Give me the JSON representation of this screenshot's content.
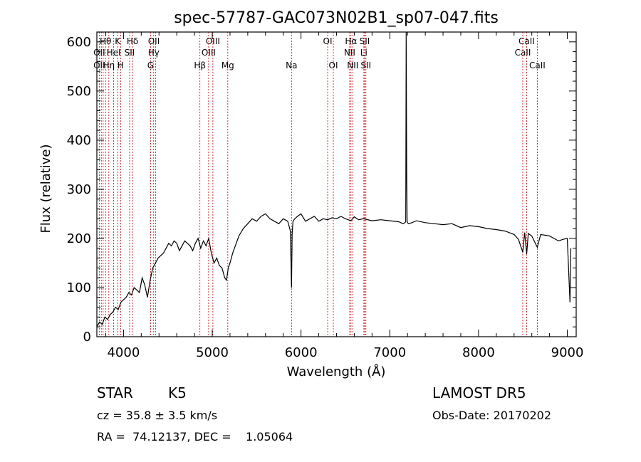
{
  "chart_data": {
    "type": "line",
    "title": "spec-57787-GAC073N02B1_sp07-047.fits",
    "xlabel": "Wavelength (Å)",
    "ylabel": "Flux (relative)",
    "xlim": [
      3700,
      9100
    ],
    "ylim": [
      0,
      620
    ],
    "xticks": [
      4000,
      5000,
      6000,
      7000,
      8000,
      9000
    ],
    "yticks": [
      0,
      100,
      200,
      300,
      400,
      500,
      600
    ],
    "xtick_labels": [
      "4000",
      "5000",
      "6000",
      "7000",
      "8000",
      "9000"
    ],
    "ytick_labels": [
      "0",
      "100",
      "200",
      "300",
      "400",
      "500",
      "600"
    ],
    "grid": false,
    "legend": "none",
    "series": [
      {
        "x": [
          3700,
          3730,
          3760,
          3790,
          3820,
          3850,
          3880,
          3910,
          3940,
          3970,
          4000,
          4030,
          4060,
          4090,
          4120,
          4150,
          4180,
          4210,
          4240,
          4270,
          4300,
          4330,
          4360,
          4390,
          4420,
          4450,
          4480,
          4510,
          4540,
          4570,
          4600,
          4630,
          4660,
          4690,
          4720,
          4750,
          4780,
          4810,
          4840,
          4870,
          4900,
          4930,
          4960,
          4990,
          5020,
          5050,
          5080,
          5110,
          5140,
          5160,
          5180,
          5200,
          5230,
          5260,
          5300,
          5350,
          5400,
          5450,
          5500,
          5550,
          5600,
          5650,
          5700,
          5750,
          5800,
          5850,
          5880,
          5893,
          5900,
          5910,
          5930,
          5960,
          6000,
          6050,
          6100,
          6150,
          6200,
          6250,
          6300,
          6350,
          6400,
          6450,
          6500,
          6563,
          6600,
          6650,
          6700,
          6800,
          6900,
          7000,
          7100,
          7150,
          7170,
          7180,
          7185,
          7190,
          7195,
          7200,
          7210,
          7250,
          7300,
          7400,
          7500,
          7600,
          7700,
          7800,
          7900,
          8000,
          8100,
          8200,
          8300,
          8400,
          8450,
          8498,
          8520,
          8542,
          8560,
          8600,
          8662,
          8700,
          8800,
          8900,
          8950,
          9000,
          9030,
          9040
        ],
        "y": [
          20,
          30,
          25,
          40,
          35,
          45,
          50,
          60,
          55,
          70,
          75,
          80,
          90,
          85,
          100,
          95,
          90,
          120,
          105,
          80,
          115,
          140,
          150,
          160,
          165,
          170,
          180,
          190,
          185,
          195,
          190,
          175,
          185,
          195,
          190,
          185,
          175,
          190,
          200,
          180,
          195,
          185,
          200,
          170,
          150,
          160,
          145,
          140,
          120,
          115,
          140,
          150,
          170,
          185,
          205,
          220,
          230,
          240,
          235,
          245,
          250,
          240,
          235,
          230,
          240,
          235,
          215,
          100,
          210,
          235,
          240,
          245,
          250,
          235,
          240,
          245,
          235,
          240,
          238,
          242,
          240,
          245,
          240,
          236,
          244,
          238,
          240,
          236,
          238,
          236,
          234,
          230,
          232,
          234,
          620,
          330,
          236,
          232,
          230,
          232,
          236,
          232,
          230,
          228,
          230,
          222,
          226,
          224,
          220,
          218,
          215,
          208,
          198,
          172,
          212,
          168,
          210,
          205,
          182,
          208,
          205,
          195,
          198,
          200,
          70,
          180
        ]
      }
    ],
    "line_labels": [
      {
        "text": "Hθ",
        "wave": 3798,
        "row": 1
      },
      {
        "text": "K",
        "wave": 3934,
        "row": 1
      },
      {
        "text": "Hδ",
        "wave": 4102,
        "row": 1
      },
      {
        "text": "OII",
        "wave": 4342,
        "row": 1
      },
      {
        "text": "OIII",
        "wave": 5007,
        "row": 1
      },
      {
        "text": "OI",
        "wave": 6300,
        "row": 1
      },
      {
        "text": "Hα",
        "wave": 6563,
        "row": 1
      },
      {
        "text": "SII",
        "wave": 6717,
        "row": 1
      },
      {
        "text": "CaII",
        "wave": 8542,
        "row": 1
      },
      {
        "text": "OII",
        "wave": 3727,
        "row": 2
      },
      {
        "text": "HeI",
        "wave": 3889,
        "row": 2
      },
      {
        "text": "SII",
        "wave": 4069,
        "row": 2
      },
      {
        "text": "Hγ",
        "wave": 4340,
        "row": 2
      },
      {
        "text": "OIII",
        "wave": 4959,
        "row": 2
      },
      {
        "text": "NII",
        "wave": 6548,
        "row": 2
      },
      {
        "text": "Li",
        "wave": 6708,
        "row": 2
      },
      {
        "text": "CaII",
        "wave": 8498,
        "row": 2
      },
      {
        "text": "OII",
        "wave": 3727,
        "row": 3
      },
      {
        "text": "Hη",
        "wave": 3835,
        "row": 3
      },
      {
        "text": "H",
        "wave": 3968,
        "row": 3
      },
      {
        "text": "G",
        "wave": 4305,
        "row": 3
      },
      {
        "text": "Hβ",
        "wave": 4861,
        "row": 3
      },
      {
        "text": "Mg",
        "wave": 5175,
        "row": 3
      },
      {
        "text": "Na",
        "wave": 5893,
        "row": 3
      },
      {
        "text": "OI",
        "wave": 6364,
        "row": 3
      },
      {
        "text": "NII",
        "wave": 6583,
        "row": 3
      },
      {
        "text": "SII",
        "wave": 6731,
        "row": 3
      },
      {
        "text": "CaII",
        "wave": 8662,
        "row": 3
      }
    ],
    "marker_lines": [
      3727,
      3750,
      3771,
      3798,
      3835,
      3889,
      3934,
      3968,
      4069,
      4102,
      4305,
      4340,
      4363,
      4861,
      4959,
      5007,
      5175,
      5893,
      6300,
      6364,
      6548,
      6563,
      6583,
      6708,
      6717,
      6731,
      8498,
      8542,
      8662
    ],
    "colors": {
      "spectrum": "#000000",
      "markers": "#cc0000",
      "axes": "#000000"
    }
  },
  "info": {
    "class": "STAR",
    "subclass": "K5",
    "survey": "LAMOST DR5",
    "cz": "cz = 35.8 ± 3.5 km/s",
    "obs_date": "Obs-Date: 20170202",
    "radec": "RA =  74.12137, DEC =    1.05064"
  }
}
